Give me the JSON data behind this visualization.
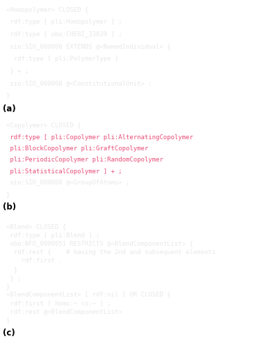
{
  "background_color": "#ffffff",
  "panel_bg": "#3a3a3a",
  "text_color_white": "#e8e8e8",
  "text_color_pink": "#e8507a",
  "font_size": 6.5,
  "label_font_size": 8.5,
  "panels": [
    {
      "label": "(a)",
      "lines": [
        {
          "text": "<Homopolymer> CLOSED {",
          "color": "white"
        },
        {
          "text": " rdf:type [ pli:Homopolymer ] ;",
          "color": "white"
        },
        {
          "text": " rdf:type [ obo:CHEBI_33839 ] ;",
          "color": "white"
        },
        {
          "text": " sio:SIO_000008 EXTENDS @<NamedIndividual> {",
          "color": "white"
        },
        {
          "text": "  rdf:type [ pli:PolymerType ]",
          "color": "white"
        },
        {
          "text": " } + ;",
          "color": "white"
        },
        {
          "text": " sio:SIO_000008 @<ConstitutionalUnit> ;",
          "color": "white"
        },
        {
          "text": "}",
          "color": "white"
        }
      ]
    },
    {
      "label": "(b)",
      "lines": [
        {
          "text": "<Copolymer> CLOSED {",
          "color": "white"
        },
        {
          "text": " rdf:type [ pli:Copolymer pli:AlternatingCopolymer",
          "color": "pink"
        },
        {
          "text": " pli:BlockCopolymer pli:GraftCopolymer",
          "color": "pink"
        },
        {
          "text": " pli:PeriodicCopolymer pli:RandomCopolymer",
          "color": "pink"
        },
        {
          "text": " pli:StatisticalCopolymer ] + ;",
          "color": "pink"
        },
        {
          "text": " sio:SIO_000008 @<GroupOfAtoms> ;",
          "color": "white"
        },
        {
          "text": "}",
          "color": "white"
        }
      ]
    },
    {
      "label": "(c)",
      "lines": [
        {
          "text": "<Blend> CLOSED {",
          "color": "white"
        },
        {
          "text": " rdf:type [ pli:Blend ] ;",
          "color": "white"
        },
        {
          "text": " obo:BFO_0000051 RESTRICTS @<BlendComponentList> {",
          "color": "white"
        },
        {
          "text": "  rdf:rest {    # having the 2nd and subsequent elements",
          "color": "white"
        },
        {
          "text": "    rdf:first .",
          "color": "white"
        },
        {
          "text": "  }",
          "color": "white"
        },
        {
          "text": " } ;",
          "color": "white"
        },
        {
          "text": "}",
          "color": "white"
        },
        {
          "text": "<BlendComponentList> [ rdf:nil ] OR CLOSED {",
          "color": "white"
        },
        {
          "text": " rdf:first [ homo:~ co:~ ] ;",
          "color": "white"
        },
        {
          "text": " rdf:rest @<BlendComponentList>",
          "color": "white"
        },
        {
          "text": "}",
          "color": "white"
        }
      ]
    }
  ]
}
